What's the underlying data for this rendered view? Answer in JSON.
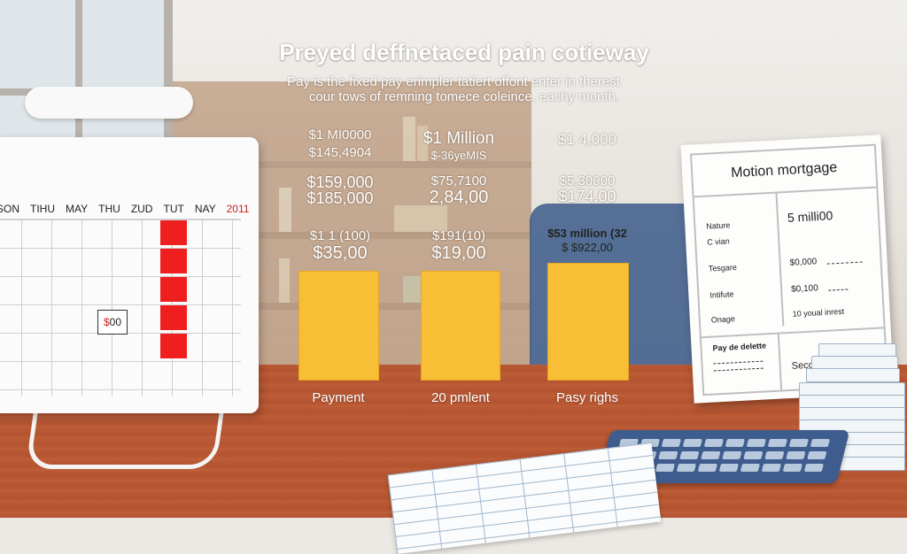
{
  "headline": {
    "title": "Preyed deffnetaced pain cotieway",
    "subtitle_line1": "Pay is the fixed pay erimpler tatiert offont enter in therest",
    "subtitle_line2": "cour tows of remning tomece coleince, eachy month."
  },
  "calendar": {
    "days": [
      "SON",
      "TIHU",
      "MAY",
      "THU",
      "ZUD",
      "TUT",
      "NAY"
    ],
    "year": "2011",
    "box_currency": "$",
    "box_value": "00"
  },
  "columns": [
    {
      "upper_1": "$1 MI0000",
      "upper_2": "$145,4904",
      "mid_1": "$159,000",
      "mid_2": "$185,000",
      "low_1": "$1 1 (100)",
      "low_2": "$35,00",
      "caption": "Payment"
    },
    {
      "upper_1": "$1 Million",
      "upper_2": "$-36yeMIS",
      "mid_1": "$75,7100",
      "mid_2": "2,84,00",
      "low_1": "$191(10)",
      "low_2": "$19,00",
      "caption": "20 pmlent"
    },
    {
      "upper_1": "$1 4,000",
      "upper_2": "",
      "mid_1": "$5,30000",
      "mid_2": "$174,00",
      "low_1": "$53 million (32",
      "low_2": "$ $922,00",
      "caption": "Pasy righs"
    }
  ],
  "mortgage_doc": {
    "title": "Motion mortgage",
    "rows": [
      {
        "label": "Nature",
        "value": "5 milli00"
      },
      {
        "label": "C vian",
        "value": ""
      },
      {
        "label": "Tesgare",
        "value": "$0,000"
      },
      {
        "label": "Intifute",
        "value": "$0,100"
      },
      {
        "label": "Onage",
        "value": "10 youal inrest"
      }
    ],
    "footer_left": "Pay de delette",
    "footer_right": "Seccont"
  },
  "colors": {
    "bar": "#f7be36",
    "desk": "#b95a37",
    "calendar_red": "#ef1f1f",
    "calculator": "#3e5c8d"
  }
}
